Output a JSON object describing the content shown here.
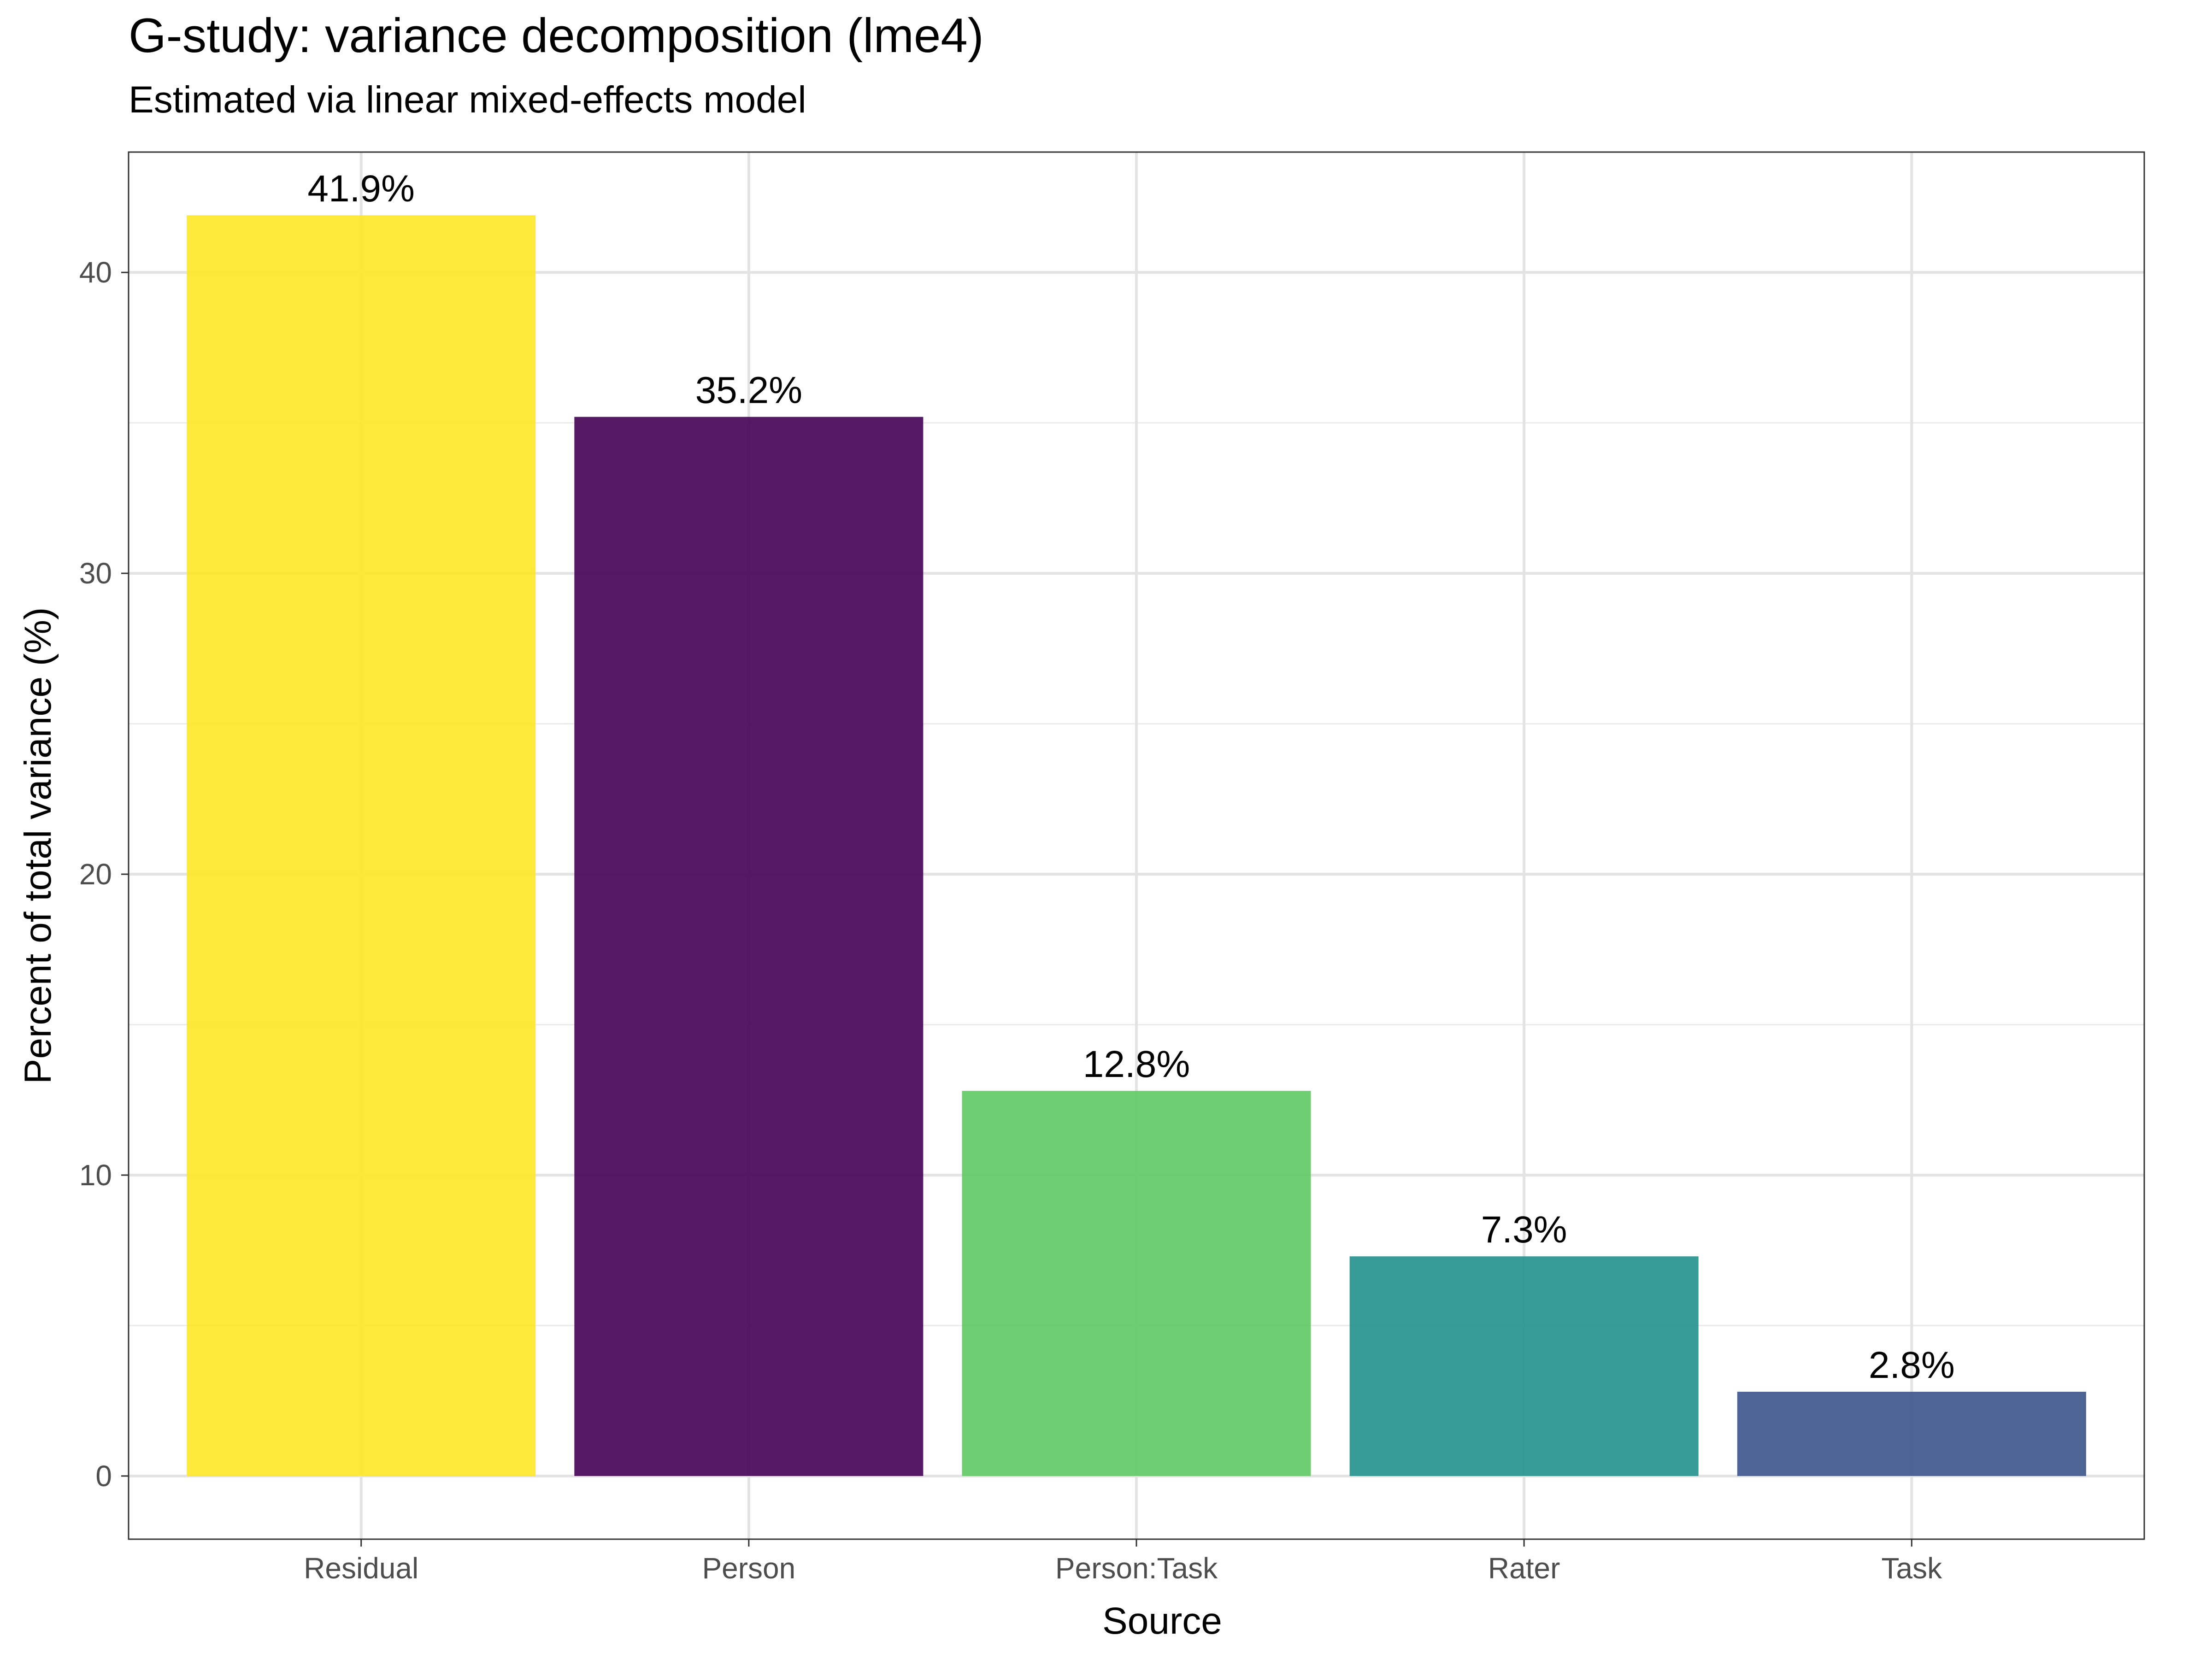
{
  "chart_data": {
    "type": "bar",
    "title": "G-study: variance decomposition (lme4)",
    "subtitle": "Estimated via linear mixed-effects model",
    "xlabel": "Source",
    "ylabel": "Percent of total variance (%)",
    "categories": [
      "Residual",
      "Person",
      "Person:Task",
      "Rater",
      "Task"
    ],
    "values": [
      41.9,
      35.2,
      12.8,
      7.3,
      2.8
    ],
    "data_labels": [
      "41.9%",
      "35.2%",
      "12.8%",
      "7.3%",
      "2.8%"
    ],
    "colors": [
      "#FDE725",
      "#440154",
      "#5EC962",
      "#21918C",
      "#3B528B"
    ],
    "bar_opacity": 0.9,
    "ylim": [
      -2.1,
      44.0
    ],
    "yticks": [
      0,
      10,
      20,
      30,
      40
    ],
    "grid": true,
    "legend": "none"
  }
}
